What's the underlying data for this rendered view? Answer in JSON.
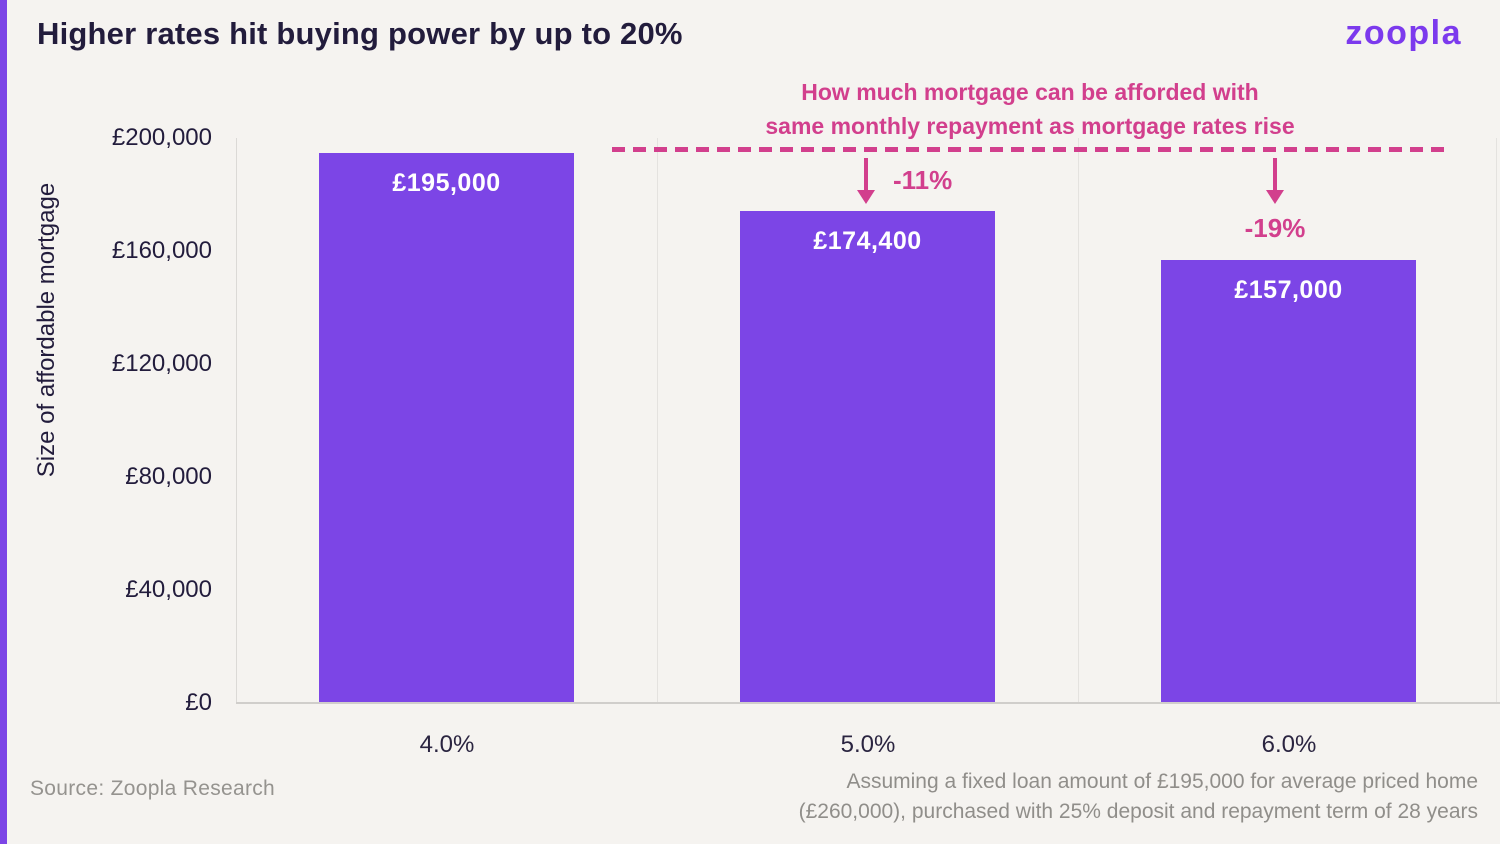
{
  "page": {
    "background": "#F5F3F0",
    "accent_purple": "#7C45E6",
    "accent_pink": "#D23F8D",
    "navy": "#221C3C"
  },
  "header": {
    "title": "Higher rates hit buying power by up to 20%",
    "logo_text": "zoopla"
  },
  "chart_data": {
    "type": "bar",
    "title": "Higher rates hit buying power by up to 20%",
    "categories": [
      "4.0%",
      "5.0%",
      "6.0%"
    ],
    "values": [
      195000,
      174400,
      157000
    ],
    "bar_labels": [
      "£195,000",
      "£174,400",
      "£157,000"
    ],
    "change_labels": [
      "",
      "-11%",
      "-19%"
    ],
    "bar_color": "#7C45E6",
    "xlabel": "",
    "ylabel": "Size of affordable mortgage",
    "ylim": [
      0,
      200000
    ],
    "ytick_labels": [
      "£200,000",
      "£160,000",
      "£120,000",
      "£80,000",
      "£40,000",
      "£0"
    ],
    "grid": "vertical category separators only",
    "legend_position": "none",
    "annotation": {
      "line1": "How much mortgage can be afforded with",
      "line2": "same monthly repayment as mortgage rates rise",
      "color": "#D23F8D"
    },
    "reference_line": {
      "value": 195000,
      "style": "dashed",
      "color": "#D23F8D"
    }
  },
  "footer": {
    "source": "Source: Zoopla Research",
    "note_line1": "Assuming a fixed loan amount of £195,000 for average priced home",
    "note_line2": "(£260,000), purchased with 25% deposit and repayment term of 28 years"
  }
}
